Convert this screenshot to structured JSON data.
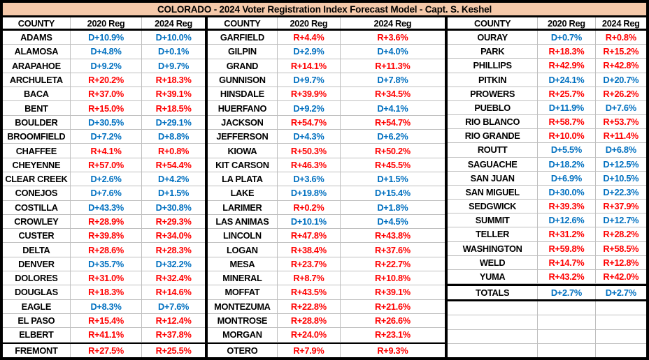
{
  "chart_data": {
    "type": "table",
    "title": "COLORADO -  2024 Voter Registration Index Forecast Model - Capt. S. Keshel",
    "columns": [
      "COUNTY",
      "2020 Reg",
      "2024 Reg"
    ],
    "colors": {
      "dem": "#0070C0",
      "rep": "#FF0000",
      "title_bg": "#F5C9AA",
      "grid": "#BFBFBF",
      "border": "#000000"
    },
    "groups": [
      {
        "rows": [
          [
            "ADAMS",
            "D+10.9%",
            "D+10.0%"
          ],
          [
            "ALAMOSA",
            "D+4.8%",
            "D+0.1%"
          ],
          [
            "ARAPAHOE",
            "D+9.2%",
            "D+9.7%"
          ],
          [
            "ARCHULETA",
            "R+20.2%",
            "R+18.3%"
          ],
          [
            "BACA",
            "R+37.0%",
            "R+39.1%"
          ],
          [
            "BENT",
            "R+15.0%",
            "R+18.5%"
          ],
          [
            "BOULDER",
            "D+30.5%",
            "D+29.1%"
          ],
          [
            "BROOMFIELD",
            "D+7.2%",
            "D+8.8%"
          ],
          [
            "CHAFFEE",
            "R+4.1%",
            "R+0.8%"
          ],
          [
            "CHEYENNE",
            "R+57.0%",
            "R+54.4%"
          ],
          [
            "CLEAR CREEK",
            "D+2.6%",
            "D+4.2%"
          ],
          [
            "CONEJOS",
            "D+7.6%",
            "D+1.5%"
          ],
          [
            "COSTILLA",
            "D+43.3%",
            "D+30.8%"
          ],
          [
            "CROWLEY",
            "R+28.9%",
            "R+29.3%"
          ],
          [
            "CUSTER",
            "R+39.8%",
            "R+34.0%"
          ],
          [
            "DELTA",
            "R+28.6%",
            "R+28.3%"
          ],
          [
            "DENVER",
            "D+35.7%",
            "D+32.2%"
          ],
          [
            "DOLORES",
            "R+31.0%",
            "R+32.4%"
          ],
          [
            "DOUGLAS",
            "R+18.3%",
            "R+14.6%"
          ],
          [
            "EAGLE",
            "D+8.3%",
            "D+7.6%"
          ],
          [
            "EL PASO",
            "R+15.4%",
            "R+12.4%"
          ],
          [
            "ELBERT",
            "R+41.1%",
            "R+37.8%"
          ],
          [
            "FREMONT",
            "R+27.5%",
            "R+25.5%"
          ]
        ]
      },
      {
        "rows": [
          [
            "GARFIELD",
            "R+4.4%",
            "R+3.6%"
          ],
          [
            "GILPIN",
            "D+2.9%",
            "D+4.0%"
          ],
          [
            "GRAND",
            "R+14.1%",
            "R+11.3%"
          ],
          [
            "GUNNISON",
            "D+9.7%",
            "D+7.8%"
          ],
          [
            "HINSDALE",
            "R+39.9%",
            "R+34.5%"
          ],
          [
            "HUERFANO",
            "D+9.2%",
            "D+4.1%"
          ],
          [
            "JACKSON",
            "R+54.7%",
            "R+54.7%"
          ],
          [
            "JEFFERSON",
            "D+4.3%",
            "D+6.2%"
          ],
          [
            "KIOWA",
            "R+50.3%",
            "R+50.2%"
          ],
          [
            "KIT CARSON",
            "R+46.3%",
            "R+45.5%"
          ],
          [
            "LA PLATA",
            "D+3.6%",
            "D+1.5%"
          ],
          [
            "LAKE",
            "D+19.8%",
            "D+15.4%"
          ],
          [
            "LARIMER",
            "R+0.2%",
            "D+1.8%"
          ],
          [
            "LAS ANIMAS",
            "D+10.1%",
            "D+4.5%"
          ],
          [
            "LINCOLN",
            "R+47.8%",
            "R+43.8%"
          ],
          [
            "LOGAN",
            "R+38.4%",
            "R+37.6%"
          ],
          [
            "MESA",
            "R+23.7%",
            "R+22.7%"
          ],
          [
            "MINERAL",
            "R+8.7%",
            "R+10.8%"
          ],
          [
            "MOFFAT",
            "R+43.5%",
            "R+39.1%"
          ],
          [
            "MONTEZUMA",
            "R+22.8%",
            "R+21.6%"
          ],
          [
            "MONTROSE",
            "R+28.8%",
            "R+26.6%"
          ],
          [
            "MORGAN",
            "R+24.0%",
            "R+23.1%"
          ],
          [
            "OTERO",
            "R+7.9%",
            "R+9.3%"
          ]
        ]
      },
      {
        "rows": [
          [
            "OURAY",
            "D+0.7%",
            "R+0.8%"
          ],
          [
            "PARK",
            "R+18.3%",
            "R+15.2%"
          ],
          [
            "PHILLIPS",
            "R+42.9%",
            "R+42.8%"
          ],
          [
            "PITKIN",
            "D+24.1%",
            "D+20.7%"
          ],
          [
            "PROWERS",
            "R+25.7%",
            "R+26.2%"
          ],
          [
            "PUEBLO",
            "D+11.9%",
            "D+7.6%"
          ],
          [
            "RIO BLANCO",
            "R+58.7%",
            "R+53.7%"
          ],
          [
            "RIO GRANDE",
            "R+10.0%",
            "R+11.4%"
          ],
          [
            "ROUTT",
            "D+5.5%",
            "D+6.8%"
          ],
          [
            "SAGUACHE",
            "D+18.2%",
            "D+12.5%"
          ],
          [
            "SAN JUAN",
            "D+6.9%",
            "D+10.5%"
          ],
          [
            "SAN MIGUEL",
            "D+30.0%",
            "D+22.3%"
          ],
          [
            "SEDGWICK",
            "R+39.3%",
            "R+37.9%"
          ],
          [
            "SUMMIT",
            "D+12.6%",
            "D+12.7%"
          ],
          [
            "TELLER",
            "R+31.2%",
            "R+28.2%"
          ],
          [
            "WASHINGTON",
            "R+59.8%",
            "R+58.5%"
          ],
          [
            "WELD",
            "R+14.7%",
            "R+12.8%"
          ],
          [
            "YUMA",
            "R+43.2%",
            "R+42.0%"
          ]
        ],
        "totals": [
          "TOTALS",
          "D+2.7%",
          "D+2.7%"
        ],
        "empty_rows": 4
      }
    ]
  }
}
